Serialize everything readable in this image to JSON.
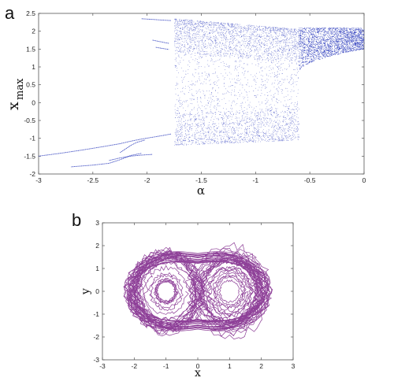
{
  "chart_data": [
    {
      "panel_label": "a",
      "type": "scatter",
      "title": "",
      "xlabel": "α",
      "ylabel_main": "x",
      "ylabel_sub": "max",
      "xlim": [
        -3,
        0
      ],
      "ylim": [
        -2,
        2.5
      ],
      "xticks": [
        -3,
        -2.5,
        -2,
        -1.5,
        -1,
        -0.5,
        0
      ],
      "xtick_labels": [
        "-3",
        "-2.5",
        "-2",
        "-1.5",
        "-1",
        "-0.5",
        "0"
      ],
      "yticks": [
        -2,
        -1.5,
        -1,
        -0.5,
        0,
        0.5,
        1,
        1.5,
        2,
        2.5
      ],
      "ytick_labels": [
        "-2",
        "-1.5",
        "-1",
        "-0.5",
        "0",
        "0.5",
        "1",
        "1.5",
        "2",
        "2.5"
      ],
      "grid": false,
      "color": "#1f2fb8",
      "branches": [
        {
          "x": [
            -3.0,
            -2.8,
            -2.6,
            -2.4,
            -2.25,
            -2.15,
            -2.05,
            -1.95,
            -1.85,
            -1.78
          ],
          "y": [
            -1.5,
            -1.42,
            -1.33,
            -1.23,
            -1.15,
            -1.08,
            -1.02,
            -0.97,
            -0.92,
            -0.88
          ]
        },
        {
          "x": [
            -2.7,
            -2.5,
            -2.35,
            -2.25,
            -2.15,
            -2.05
          ],
          "y": [
            -1.8,
            -1.75,
            -1.7,
            -1.6,
            -1.48,
            -1.42
          ]
        },
        {
          "x": [
            -2.35,
            -2.25,
            -2.15,
            -2.05,
            -1.95
          ],
          "y": [
            -1.62,
            -1.55,
            -1.5,
            -1.47,
            -1.45
          ]
        },
        {
          "x": [
            -2.25,
            -2.2,
            -2.15,
            -2.1,
            -2.02
          ],
          "y": [
            -1.4,
            -1.3,
            -1.2,
            -1.12,
            -1.05
          ]
        },
        {
          "x": [
            -1.95,
            -1.9,
            -1.85,
            -1.8
          ],
          "y": [
            1.75,
            1.72,
            1.69,
            1.66
          ]
        },
        {
          "x": [
            -1.92,
            -1.88,
            -1.84,
            -1.8
          ],
          "y": [
            1.55,
            1.53,
            1.51,
            1.49
          ]
        },
        {
          "x": [
            -2.05,
            -1.95,
            -1.85,
            -1.78
          ],
          "y": [
            2.35,
            2.33,
            2.31,
            2.3
          ]
        }
      ],
      "chaotic_regions": [
        {
          "x_range": [
            -1.75,
            -0.6
          ],
          "y_top": [
            2.35,
            2.05
          ],
          "y_bottom": [
            -1.2,
            -1.05
          ],
          "density": "high near top and bottom bands"
        },
        {
          "x_range": [
            -0.6,
            0.0
          ],
          "y_top": [
            2.1,
            2.1
          ],
          "y_bottom": [
            0.85,
            1.5
          ],
          "density": "dense band"
        }
      ]
    },
    {
      "panel_label": "b",
      "type": "line",
      "title": "",
      "xlabel": "x",
      "ylabel": "y",
      "xlim": [
        -3,
        3
      ],
      "ylim": [
        -3,
        3
      ],
      "xticks": [
        -3,
        -2,
        -1,
        0,
        1,
        2,
        3
      ],
      "xtick_labels": [
        "-3",
        "-2",
        "-1",
        "0",
        "1",
        "2",
        "3"
      ],
      "yticks": [
        -3,
        -2,
        -1,
        0,
        1,
        2,
        3
      ],
      "ytick_labels": [
        "-3",
        "-2",
        "-1",
        "0",
        "1",
        "2",
        "3"
      ],
      "grid": false,
      "color": "#7a1f86",
      "attractor": {
        "type": "double-scroll",
        "x_extent": [
          -2.2,
          2.25
        ],
        "y_extent": [
          -2.3,
          2.3
        ],
        "scroll_centers": [
          [
            -1.0,
            0.0
          ],
          [
            1.0,
            0.0
          ]
        ]
      }
    }
  ]
}
